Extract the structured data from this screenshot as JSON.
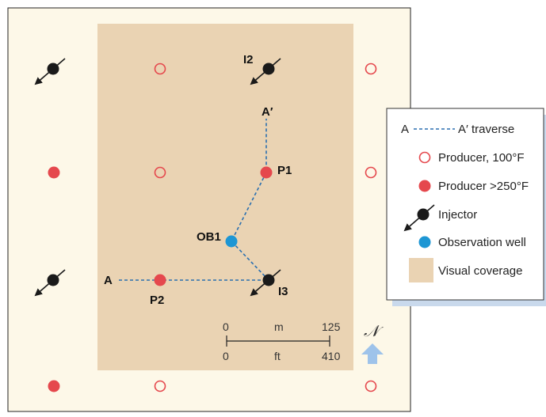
{
  "colors": {
    "field_bg": "#fdf8e8",
    "coverage": "#ead3b3",
    "producer_hot": "#e5484d",
    "producer_ring": "#e5484d",
    "injector": "#1a1a1a",
    "observation": "#1d96d4",
    "traverse": "#2a6fb0",
    "north_arrow": "#9ec3ea"
  },
  "labels": {
    "I2": "I2",
    "A_prime": "A′",
    "P1": "P1",
    "OB1": "OB1",
    "A": "A",
    "P2": "P2",
    "I3": "I3"
  },
  "scale_bar": {
    "top_start": "0",
    "top_unit": "m",
    "top_end": "125",
    "bottom_start": "0",
    "bottom_unit": "ft",
    "bottom_end": "410"
  },
  "north": {
    "symbol": "𝒩"
  },
  "legend": {
    "traverse_start": "A",
    "traverse_end": "A′ traverse",
    "producer_100": "Producer, 100°F",
    "producer_250": "Producer >250°F",
    "injector": "Injector",
    "observation": "Observation well",
    "coverage": "Visual coverage"
  }
}
